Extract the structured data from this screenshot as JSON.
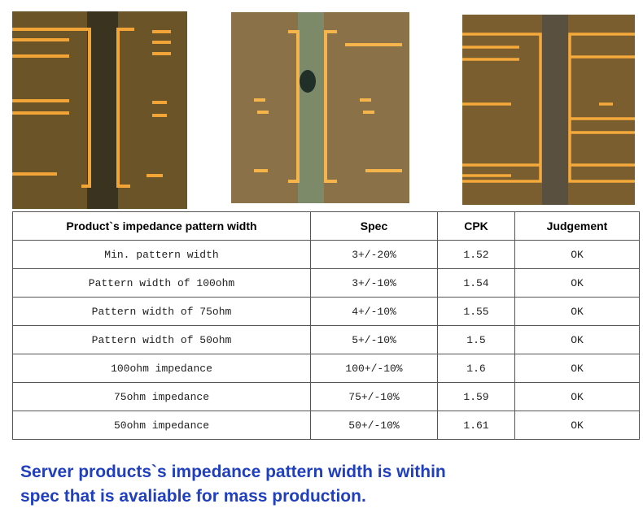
{
  "table": {
    "header": [
      "Product`s impedance pattern width",
      "Spec",
      "CPK",
      "Judgement"
    ],
    "rows": [
      [
        "Min. pattern width",
        "3+/-20%",
        "1.52",
        "OK"
      ],
      [
        "Pattern width of 100ohm",
        "3+/-10%",
        "1.54",
        "OK"
      ],
      [
        "Pattern width of 75ohm",
        "4+/-10%",
        "1.55",
        "OK"
      ],
      [
        "Pattern width of 50ohm",
        "5+/-10%",
        "1.5",
        "OK"
      ],
      [
        "100ohm impedance",
        "100+/-10%",
        "1.6",
        "OK"
      ],
      [
        "75ohm impedance",
        "75+/-10%",
        "1.59",
        "OK"
      ],
      [
        "50ohm impedance",
        "50+/-10%",
        "1.61",
        "OK"
      ]
    ]
  },
  "caption": [
    "Server products`s impedance pattern width is within",
    "spec that is avaliable for mass production."
  ]
}
